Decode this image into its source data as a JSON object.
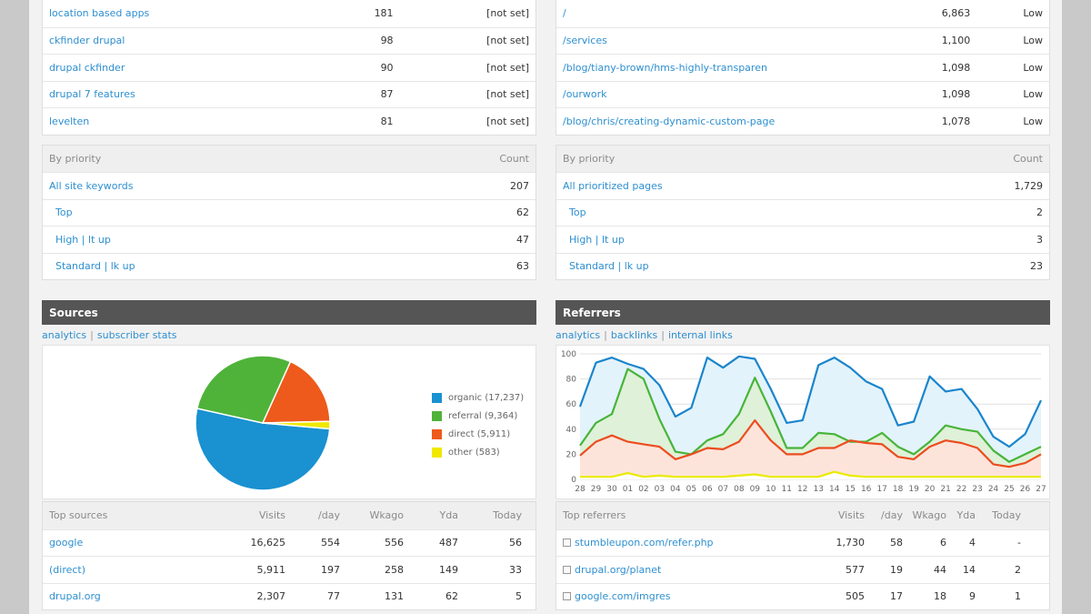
{
  "keywords_top": [
    {
      "keyword": "location based apps",
      "value": "181",
      "status": "[not set]"
    },
    {
      "keyword": "ckfinder drupal",
      "value": "98",
      "status": "[not set]"
    },
    {
      "keyword": "drupal ckfinder",
      "value": "90",
      "status": "[not set]"
    },
    {
      "keyword": "drupal 7 features",
      "value": "87",
      "status": "[not set]"
    },
    {
      "keyword": "levelten",
      "value": "81",
      "status": "[not set]"
    }
  ],
  "pages_top": [
    {
      "path": "/",
      "value": "6,863",
      "status": "Low"
    },
    {
      "path": "/services",
      "value": "1,100",
      "status": "Low"
    },
    {
      "path": "/blog/tiany-brown/hms-highly-transparen",
      "value": "1,098",
      "status": "Low"
    },
    {
      "path": "/ourwork",
      "value": "1,098",
      "status": "Low"
    },
    {
      "path": "/blog/chris/creating-dynamic-custom-page",
      "value": "1,078",
      "status": "Low"
    }
  ],
  "keyword_priority": {
    "header": {
      "label": "By priority",
      "count": "Count"
    },
    "rows": [
      {
        "label": "All site keywords",
        "count": "207"
      },
      {
        "label": "Top",
        "count": "62"
      },
      {
        "label": "High | lt up",
        "count": "47"
      },
      {
        "label": "Standard | lk up",
        "count": "63"
      }
    ]
  },
  "page_priority": {
    "header": {
      "label": "By priority",
      "count": "Count"
    },
    "rows": [
      {
        "label": "All prioritized pages",
        "count": "1,729"
      },
      {
        "label": "Top",
        "count": "2"
      },
      {
        "label": "High | lt up",
        "count": "3"
      },
      {
        "label": "Standard | lk up",
        "count": "23"
      }
    ]
  },
  "sources": {
    "title": "Sources",
    "links": [
      "analytics",
      "subscriber stats"
    ],
    "legend": [
      "organic (17,237)",
      "referral (9,364)",
      "direct (5,911)",
      "other (583)"
    ],
    "table": {
      "headers": [
        "Top sources",
        "Visits",
        "/day",
        "Wkago",
        "Yda",
        "Today"
      ],
      "rows": [
        [
          "google",
          "16,625",
          "554",
          "556",
          "487",
          "56"
        ],
        [
          "(direct)",
          "5,911",
          "197",
          "258",
          "149",
          "33"
        ],
        [
          "drupal.org",
          "2,307",
          "77",
          "131",
          "62",
          "5"
        ]
      ]
    }
  },
  "referrers": {
    "title": "Referrers",
    "links": [
      "analytics",
      "backlinks",
      "internal links"
    ],
    "table": {
      "headers": [
        "Top referrers",
        "Visits",
        "/day",
        "Wkago",
        "Yda",
        "Today"
      ],
      "rows": [
        [
          "stumbleupon.com/refer.php",
          "1,730",
          "58",
          "6",
          "4",
          "-"
        ],
        [
          "drupal.org/planet",
          "577",
          "19",
          "44",
          "14",
          "2"
        ],
        [
          "google.com/imgres",
          "505",
          "17",
          "18",
          "9",
          "1"
        ]
      ]
    }
  },
  "chart_data": [
    {
      "type": "pie",
      "labels": [
        "organic",
        "referral",
        "direct",
        "other"
      ],
      "values": [
        17237,
        9364,
        5911,
        583
      ],
      "colors": [
        "#1a91d1",
        "#4fb33a",
        "#ee5a1b",
        "#f0e800"
      ]
    },
    {
      "type": "area",
      "x": [
        "28",
        "29",
        "30",
        "01",
        "02",
        "03",
        "04",
        "05",
        "06",
        "07",
        "08",
        "09",
        "10",
        "11",
        "12",
        "13",
        "14",
        "15",
        "16",
        "17",
        "18",
        "19",
        "20",
        "21",
        "22",
        "23",
        "24",
        "25",
        "26",
        "27"
      ],
      "ylim": [
        0,
        100
      ],
      "yticks": [
        "0",
        "20",
        "40",
        "60",
        "80",
        "100"
      ],
      "grid": true,
      "series": [
        {
          "color": "#1a85cc",
          "fill": "#e3f3fb",
          "values": [
            58,
            93,
            97,
            92,
            88,
            75,
            50,
            57,
            97,
            89,
            98,
            96,
            72,
            45,
            47,
            91,
            97,
            89,
            78,
            72,
            43,
            46,
            82,
            70,
            72,
            56,
            34,
            26,
            36,
            63
          ]
        },
        {
          "color": "#48b43a",
          "fill": "#dff1d8",
          "values": [
            27,
            45,
            52,
            88,
            80,
            48,
            22,
            20,
            31,
            36,
            52,
            81,
            54,
            25,
            25,
            37,
            36,
            30,
            30,
            37,
            26,
            20,
            30,
            43,
            40,
            38,
            23,
            14,
            20,
            26
          ]
        },
        {
          "color": "#ec4c1f",
          "fill": "#fde4da",
          "values": [
            19,
            30,
            35,
            30,
            28,
            26,
            16,
            20,
            25,
            24,
            30,
            47,
            31,
            20,
            20,
            25,
            25,
            31,
            29,
            28,
            18,
            16,
            26,
            31,
            29,
            25,
            12,
            10,
            13,
            20
          ]
        },
        {
          "color": "#eaea00",
          "fill": "#ffffff",
          "values": [
            2,
            2,
            2,
            5,
            2,
            3,
            2,
            2,
            2,
            2,
            3,
            4,
            2,
            2,
            2,
            2,
            6,
            3,
            2,
            2,
            2,
            2,
            2,
            2,
            2,
            2,
            2,
            2,
            2,
            2
          ]
        }
      ]
    }
  ]
}
